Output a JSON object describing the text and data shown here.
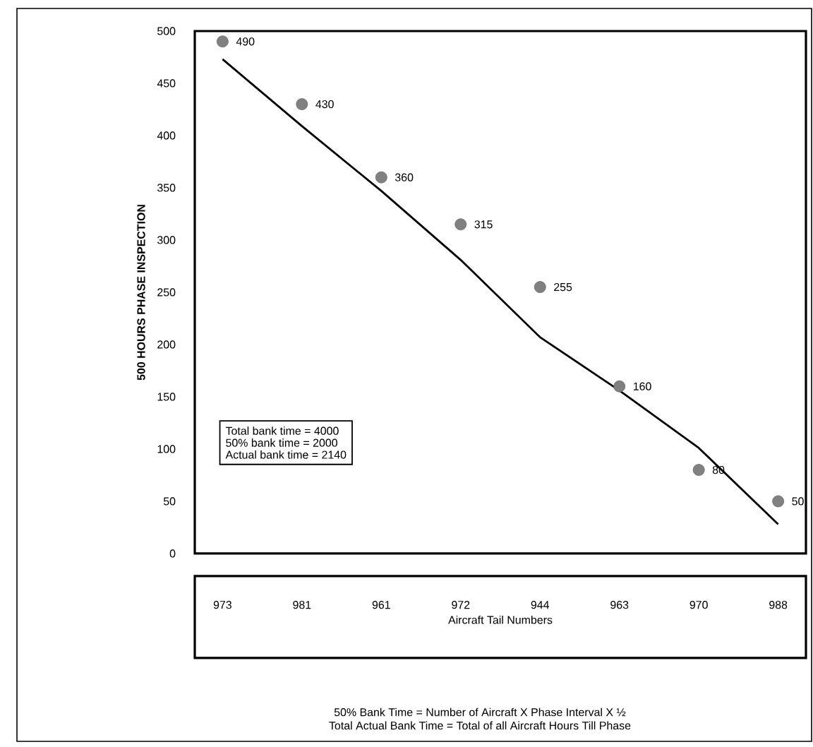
{
  "chart_data": {
    "type": "scatter",
    "ylabel": "500 HOURS PHASE INSPECTION",
    "xlabel": "Aircraft Tail Numbers",
    "categories": [
      "973",
      "981",
      "961",
      "972",
      "944",
      "963",
      "970",
      "988"
    ],
    "series": [
      {
        "type": "line",
        "color": "#000000",
        "line_style": "solid",
        "marker": "none",
        "values": [
          473,
          409,
          347,
          281,
          207,
          156,
          101,
          28
        ]
      },
      {
        "color": "#808080",
        "values": [
          490,
          430,
          360,
          315,
          255,
          160,
          80,
          50
        ],
        "value_labels": [
          "490",
          "430",
          "360",
          "315",
          "255",
          "160",
          "80",
          "50"
        ]
      }
    ],
    "ylim": [
      0,
      500
    ],
    "yticks": [
      0,
      50,
      100,
      150,
      200,
      250,
      300,
      350,
      400,
      450,
      500
    ],
    "grid": false,
    "marker": "circle",
    "annotations": [
      "Total bank time = 4000",
      "50% bank time = 2000",
      "Actual bank time = 2140",
      "50% Bank Time = Number of Aircraft X Phase Interval X ½",
      "Total Actual Bank Time = Total of all Aircraft Hours Till Phase"
    ]
  }
}
